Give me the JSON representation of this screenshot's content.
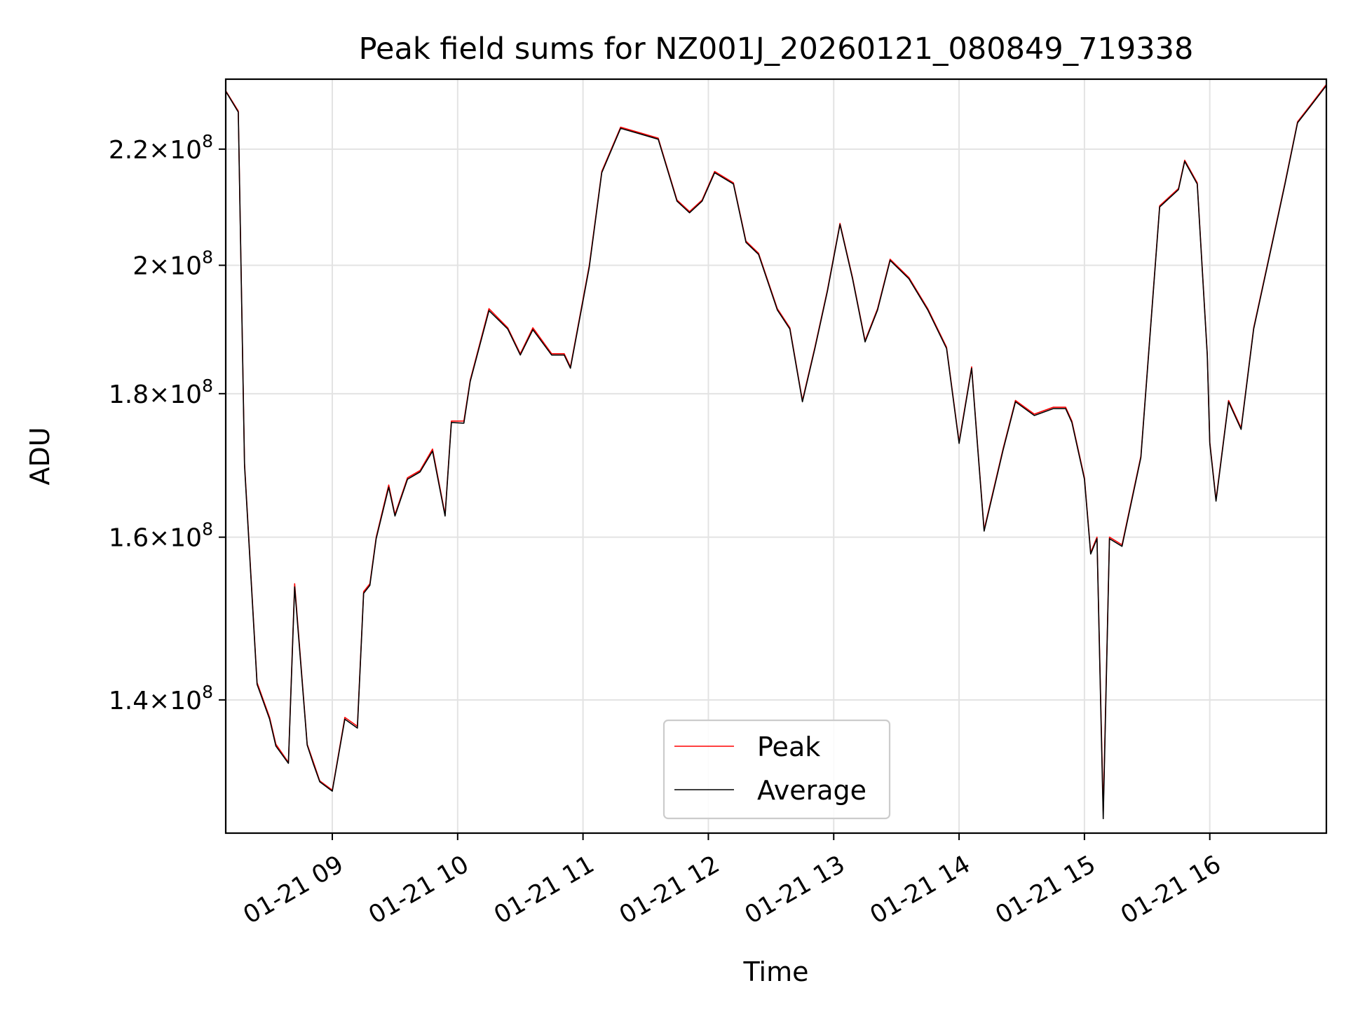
{
  "chart_data": {
    "type": "line",
    "title": "Peak field sums for NZ001J_20260121_080849_719338",
    "xlabel": "Time",
    "ylabel": "ADU",
    "yscale": "log",
    "grid": true,
    "legend_position": "bottom-center",
    "xlim_hours": [
      8.15,
      16.93
    ],
    "ylim": [
      125500000,
      233000000
    ],
    "x_ticks": [
      {
        "hour": 9,
        "label": "01-21 09"
      },
      {
        "hour": 10,
        "label": "01-21 10"
      },
      {
        "hour": 11,
        "label": "01-21 11"
      },
      {
        "hour": 12,
        "label": "01-21 12"
      },
      {
        "hour": 13,
        "label": "01-21 13"
      },
      {
        "hour": 14,
        "label": "01-21 14"
      },
      {
        "hour": 15,
        "label": "01-21 15"
      },
      {
        "hour": 16,
        "label": "01-21 16"
      }
    ],
    "y_ticks": [
      {
        "value": 140000000,
        "mantissa": "1.4",
        "base": "10",
        "exponent": "8"
      },
      {
        "value": 160000000,
        "mantissa": "1.6",
        "base": "10",
        "exponent": "8"
      },
      {
        "value": 180000000,
        "mantissa": "1.8",
        "base": "10",
        "exponent": "8"
      },
      {
        "value": 200000000,
        "mantissa": "2",
        "base": "10",
        "exponent": "8"
      },
      {
        "value": 220000000,
        "mantissa": "2.2",
        "base": "10",
        "exponent": "8"
      }
    ],
    "x_hours": [
      8.15,
      8.25,
      8.3,
      8.4,
      8.5,
      8.55,
      8.65,
      8.7,
      8.8,
      8.85,
      8.9,
      9.0,
      9.1,
      9.2,
      9.25,
      9.3,
      9.35,
      9.45,
      9.5,
      9.6,
      9.7,
      9.8,
      9.9,
      9.95,
      10.05,
      10.1,
      10.25,
      10.4,
      10.5,
      10.6,
      10.75,
      10.85,
      10.9,
      11.05,
      11.15,
      11.3,
      11.45,
      11.6,
      11.75,
      11.85,
      11.95,
      12.05,
      12.2,
      12.3,
      12.4,
      12.55,
      12.65,
      12.75,
      12.85,
      12.95,
      13.05,
      13.15,
      13.25,
      13.35,
      13.45,
      13.6,
      13.75,
      13.9,
      14.0,
      14.1,
      14.15,
      14.2,
      14.35,
      14.45,
      14.6,
      14.75,
      14.85,
      14.9,
      15.0,
      15.05,
      15.1,
      15.15,
      15.2,
      15.3,
      15.45,
      15.6,
      15.75,
      15.8,
      15.9,
      15.98,
      16.0,
      16.05,
      16.15,
      16.25,
      16.35,
      16.5,
      16.6,
      16.7,
      16.8,
      16.93
    ],
    "series": [
      {
        "name": "Peak",
        "color": "#ff0000",
        "values": [
          230800000,
          227000000,
          170000000,
          142000000,
          138000000,
          135000000,
          133000000,
          154000000,
          135000000,
          133000000,
          131000000,
          130000000,
          138000000,
          137000000,
          153000000,
          154000000,
          160000000,
          167000000,
          163000000,
          168000000,
          169000000,
          172000000,
          163000000,
          176000000,
          176000000,
          182000000,
          193000000,
          190000000,
          186000000,
          190000000,
          186000000,
          186000000,
          184000000,
          200000000,
          216000000,
          224000000,
          223000000,
          222000000,
          211000000,
          209000000,
          211000000,
          216000000,
          214000000,
          204000000,
          202000000,
          193000000,
          190000000,
          179000000,
          187000000,
          196000000,
          207000000,
          198000000,
          188000000,
          193000000,
          201000000,
          198000000,
          193000000,
          187000000,
          173000000,
          184000000,
          172000000,
          161000000,
          172000000,
          179000000,
          177000000,
          178000000,
          178000000,
          176000000,
          168000000,
          158000000,
          160000000,
          127800000,
          160000000,
          159000000,
          171000000,
          210000000,
          213000000,
          218000000,
          214000000,
          186000000,
          173000000,
          165000000,
          179000000,
          175000000,
          190000000,
          204000000,
          214000000,
          225000000,
          228000000,
          232000000
        ]
      },
      {
        "name": "Average",
        "color": "#000000",
        "values": [
          230700000,
          226800000,
          169700000,
          141800000,
          137800000,
          134800000,
          132900000,
          153600000,
          134900000,
          132800000,
          130900000,
          129900000,
          137800000,
          136800000,
          152800000,
          153800000,
          159800000,
          166700000,
          162800000,
          167800000,
          168800000,
          171700000,
          162800000,
          175800000,
          175700000,
          181800000,
          192700000,
          189800000,
          185800000,
          189700000,
          185800000,
          185800000,
          183800000,
          199700000,
          215800000,
          223800000,
          222800000,
          221800000,
          210800000,
          208800000,
          210800000,
          215800000,
          213800000,
          203800000,
          201800000,
          192800000,
          189800000,
          178800000,
          186800000,
          195800000,
          206800000,
          197800000,
          187800000,
          192800000,
          200800000,
          197800000,
          192800000,
          186800000,
          172800000,
          183800000,
          171800000,
          160800000,
          171800000,
          178800000,
          176800000,
          177800000,
          177800000,
          175800000,
          167800000,
          157800000,
          159800000,
          127000000,
          159800000,
          158800000,
          170800000,
          209800000,
          212800000,
          217800000,
          213800000,
          185800000,
          172800000,
          164800000,
          178800000,
          174800000,
          189800000,
          203800000,
          213800000,
          224800000,
          227800000,
          231800000
        ]
      }
    ]
  }
}
